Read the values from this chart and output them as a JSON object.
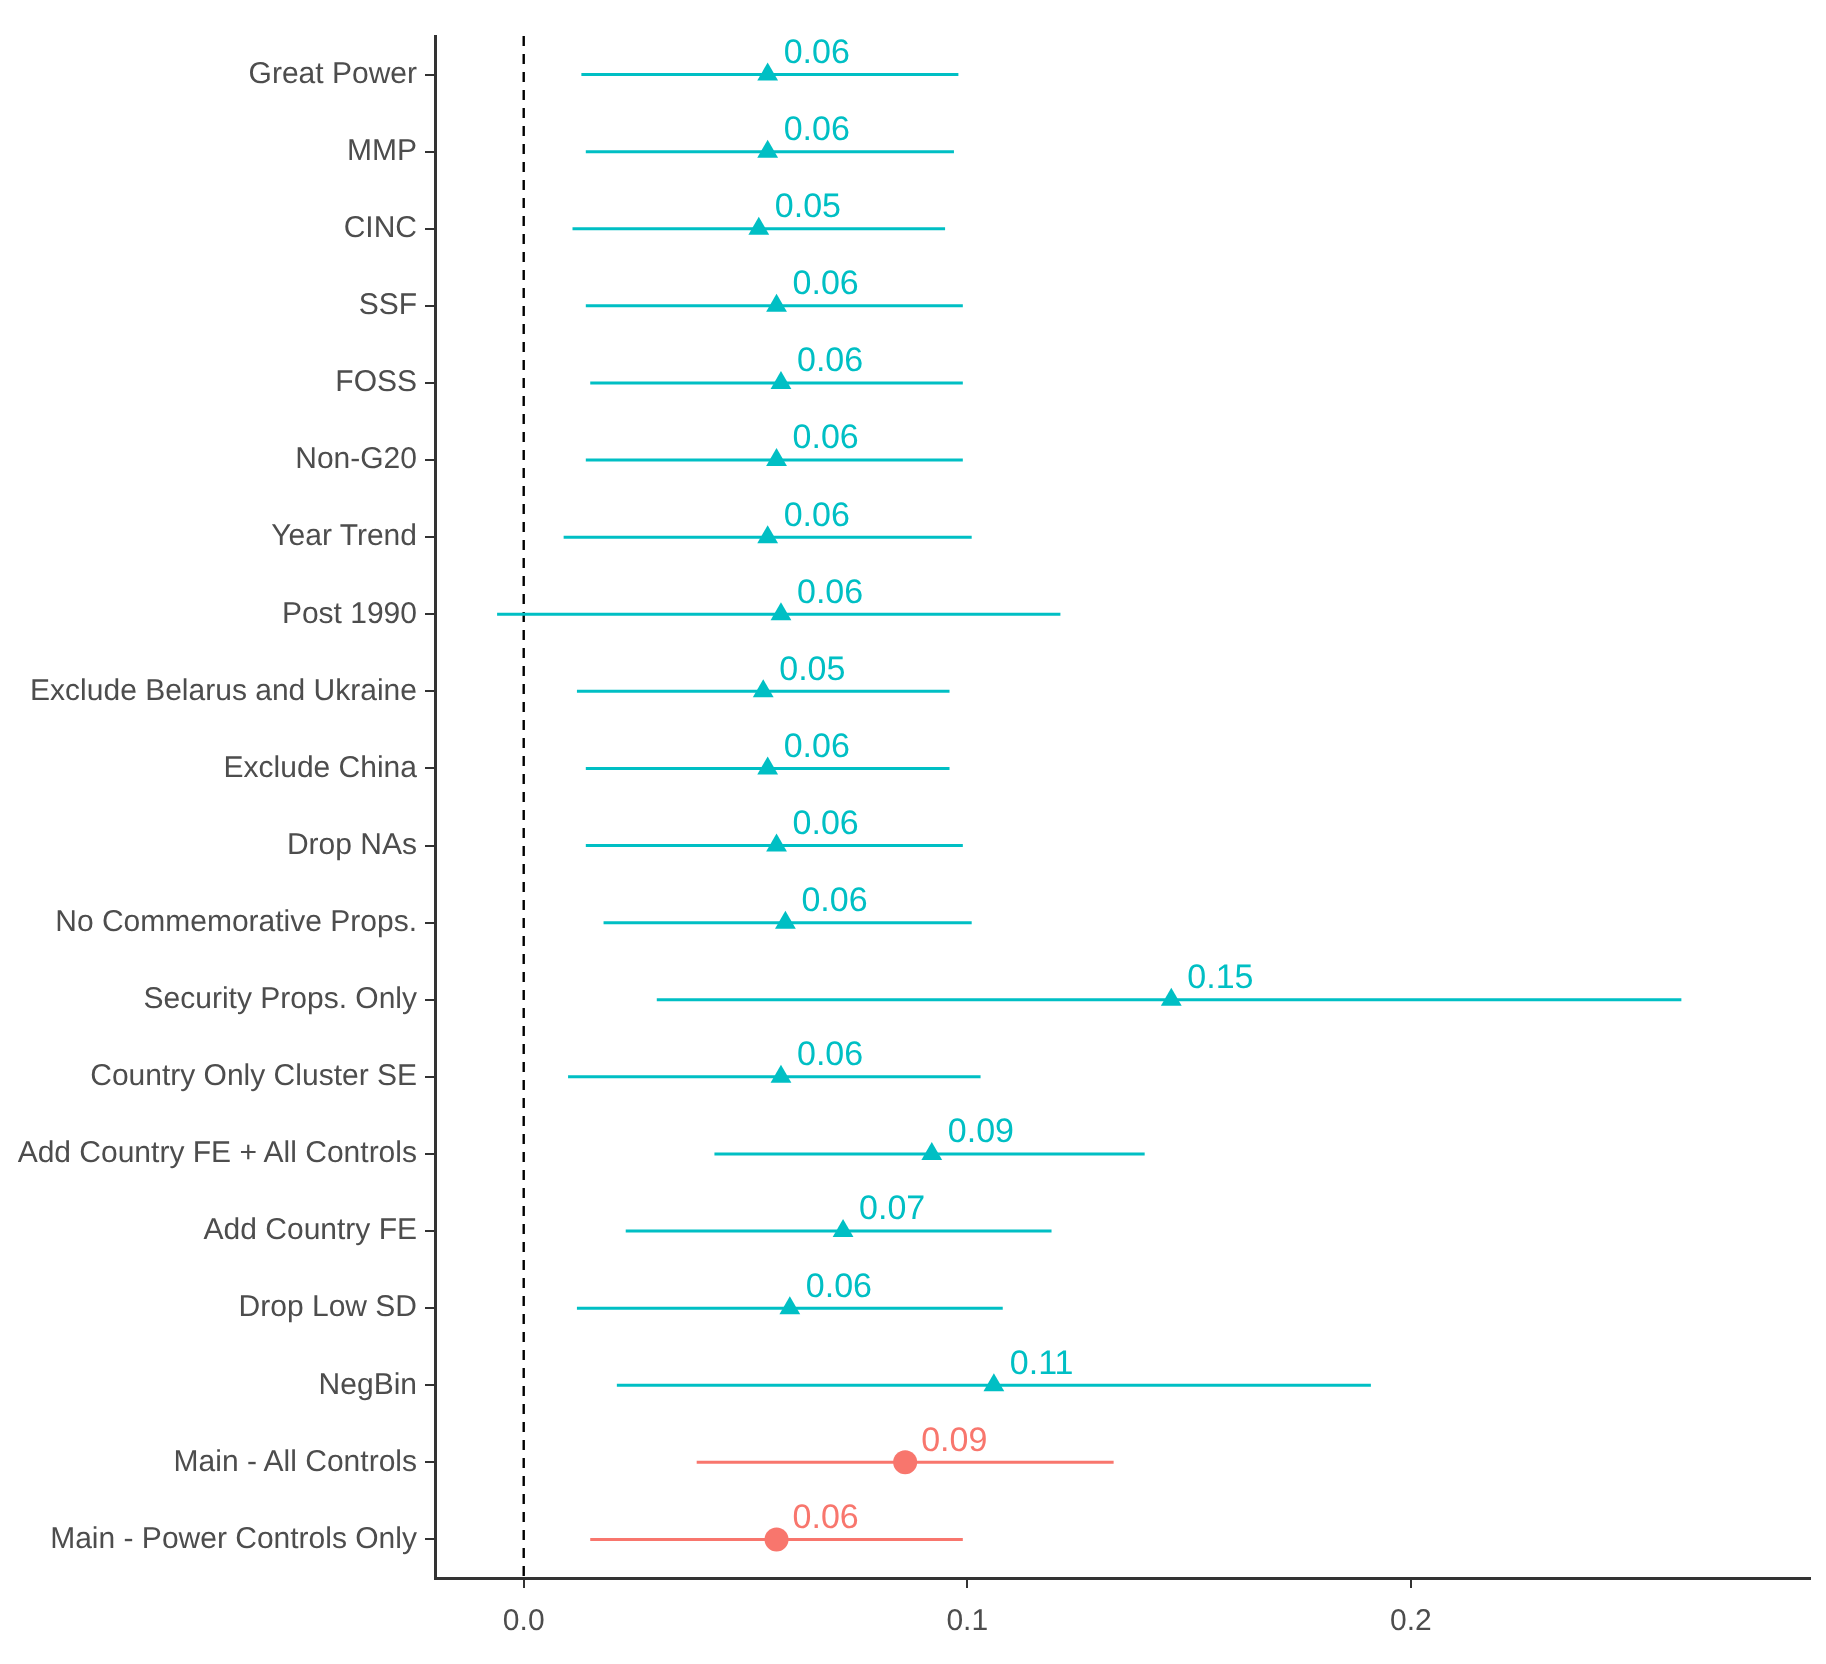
{
  "chart_data": {
    "type": "scatter",
    "orientation": "horizontal",
    "categories": [
      "Great Power",
      "MMP",
      "CINC",
      "SSF",
      "FOSS",
      "Non-G20",
      "Year Trend",
      "Post 1990",
      "Exclude Belarus and Ukraine",
      "Exclude China",
      "Drop NAs",
      "No Commemorative Props.",
      "Security Props. Only",
      "Country Only Cluster SE",
      "Add Country FE + All Controls",
      "Add Country FE",
      "Drop Low SD",
      "NegBin",
      "Main - All Controls",
      "Main - Power Controls Only"
    ],
    "series": [
      {
        "color": "#00bfc4",
        "marker": "triangle",
        "values": [
          0.055,
          0.055,
          0.053,
          0.057,
          0.058,
          0.057,
          0.055,
          0.058,
          0.054,
          0.055,
          0.057,
          0.059,
          0.146,
          0.058,
          0.092,
          0.072,
          0.06,
          0.106,
          null,
          null
        ],
        "errors": [
          [
            0.013,
            0.098
          ],
          [
            0.014,
            0.097
          ],
          [
            0.011,
            0.095
          ],
          [
            0.014,
            0.099
          ],
          [
            0.015,
            0.099
          ],
          [
            0.014,
            0.099
          ],
          [
            0.009,
            0.101
          ],
          [
            -0.006,
            0.121
          ],
          [
            0.012,
            0.096
          ],
          [
            0.014,
            0.096
          ],
          [
            0.014,
            0.099
          ],
          [
            0.018,
            0.101
          ],
          [
            0.03,
            0.261
          ],
          [
            0.01,
            0.103
          ],
          [
            0.043,
            0.14
          ],
          [
            0.023,
            0.119
          ],
          [
            0.012,
            0.108
          ],
          [
            0.021,
            0.191
          ],
          null,
          null
        ],
        "value_labels": [
          "0.06",
          "0.06",
          "0.05",
          "0.06",
          "0.06",
          "0.06",
          "0.06",
          "0.06",
          "0.05",
          "0.06",
          "0.06",
          "0.06",
          "0.15",
          "0.06",
          "0.09",
          "0.07",
          "0.06",
          "0.11",
          null,
          null
        ]
      },
      {
        "color": "#f8766d",
        "marker": "circle",
        "values": [
          null,
          null,
          null,
          null,
          null,
          null,
          null,
          null,
          null,
          null,
          null,
          null,
          null,
          null,
          null,
          null,
          null,
          null,
          0.086,
          0.057
        ],
        "errors": [
          null,
          null,
          null,
          null,
          null,
          null,
          null,
          null,
          null,
          null,
          null,
          null,
          null,
          null,
          null,
          null,
          null,
          null,
          [
            0.039,
            0.133
          ],
          [
            0.015,
            0.099
          ]
        ],
        "value_labels": [
          null,
          null,
          null,
          null,
          null,
          null,
          null,
          null,
          null,
          null,
          null,
          null,
          null,
          null,
          null,
          null,
          null,
          null,
          "0.09",
          "0.06"
        ]
      }
    ],
    "xlim": [
      -0.02,
      0.29
    ],
    "xticks": [
      {
        "value": 0,
        "label": "0.0"
      },
      0.1,
      0.2
    ],
    "ref_lines": [
      {
        "axis": "x",
        "value": 0,
        "color": "#000000",
        "line_style": "dashed"
      }
    ],
    "grid": false,
    "legend": false
  }
}
